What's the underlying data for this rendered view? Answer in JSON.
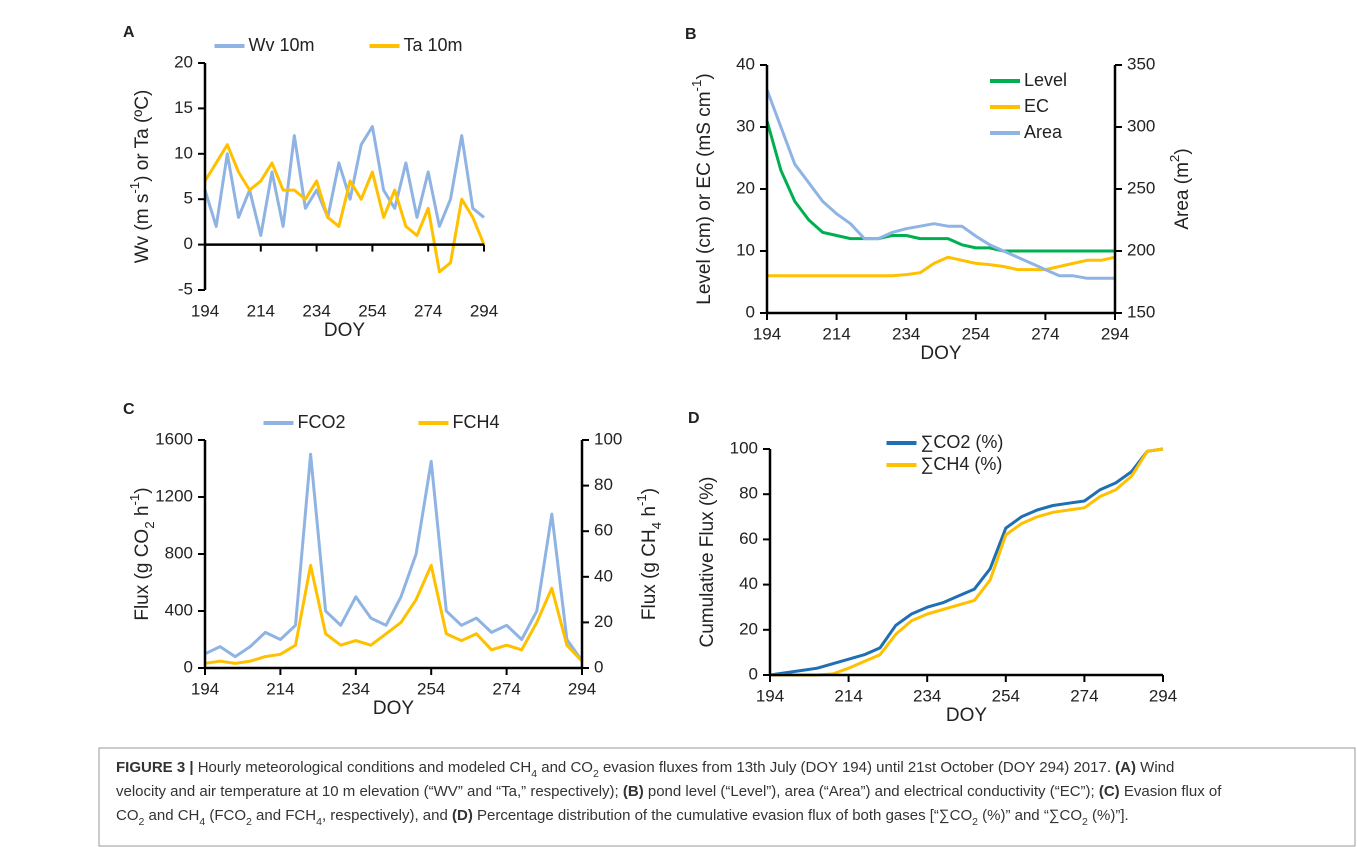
{
  "chart_data": [
    {
      "type": "line",
      "label": "A",
      "legend": "top",
      "xlabel": [
        {
          "text": "DOY"
        }
      ],
      "ylabel": [
        {
          "text": "Wv (m s"
        },
        {
          "text": "-1",
          "sup": true
        },
        {
          "text": ") or Ta (ºC)"
        }
      ],
      "xlim": [
        194,
        294
      ],
      "xticks": [
        194,
        214,
        234,
        254,
        274,
        294
      ],
      "ylim": [
        -5,
        20
      ],
      "yticks": [
        -5,
        0,
        5,
        10,
        15,
        20
      ],
      "x": [
        194,
        198,
        202,
        206,
        210,
        214,
        218,
        222,
        226,
        230,
        234,
        238,
        242,
        246,
        250,
        254,
        258,
        262,
        266,
        270,
        274,
        278,
        282,
        286,
        290,
        294
      ],
      "series": [
        {
          "name": "Wv 10m",
          "color": "#8fb4e3",
          "values": [
            6,
            2,
            10,
            3,
            6,
            1,
            8,
            2,
            12,
            4,
            6,
            3,
            9,
            5,
            11,
            13,
            6,
            4,
            9,
            3,
            8,
            2,
            5,
            12,
            4,
            3
          ]
        },
        {
          "name": "Ta 10m",
          "color": "#ffc000",
          "values": [
            7,
            9,
            11,
            8,
            6,
            7,
            9,
            6,
            6,
            5,
            7,
            3,
            2,
            7,
            5,
            8,
            3,
            6,
            2,
            1,
            4,
            -3,
            -2,
            5,
            3,
            0
          ]
        }
      ]
    },
    {
      "type": "line",
      "label": "B",
      "legend": "upper right",
      "xlabel": [
        {
          "text": "DOY"
        }
      ],
      "ylabel": [
        {
          "text": "Level (cm) or EC (mS cm"
        },
        {
          "text": "-1",
          "sup": true
        },
        {
          "text": ")"
        }
      ],
      "y2label": [
        {
          "text": "Area (m"
        },
        {
          "text": "2",
          "sup": true
        },
        {
          "text": ")"
        }
      ],
      "xlim": [
        194,
        294
      ],
      "xticks": [
        194,
        214,
        234,
        254,
        274,
        294
      ],
      "ylim": [
        0,
        40
      ],
      "yticks": [
        0,
        10,
        20,
        30,
        40
      ],
      "y2lim": [
        150,
        350
      ],
      "y2ticks": [
        150,
        200,
        250,
        300,
        350
      ],
      "x": [
        194,
        198,
        202,
        206,
        210,
        214,
        218,
        222,
        226,
        230,
        234,
        238,
        242,
        246,
        250,
        254,
        258,
        262,
        266,
        270,
        274,
        278,
        282,
        286,
        290,
        294
      ],
      "series": [
        {
          "name": "Level",
          "color": "#00b050",
          "values": [
            31,
            23,
            18,
            15,
            13,
            12.5,
            12,
            12,
            12,
            12.5,
            12.5,
            12,
            12,
            12,
            11,
            10.5,
            10.5,
            10,
            10,
            10,
            10,
            10,
            10,
            10,
            10,
            10
          ]
        },
        {
          "name": "EC",
          "color": "#ffc000",
          "values": [
            6,
            6,
            6,
            6,
            6,
            6,
            6,
            6,
            6,
            6,
            6.2,
            6.5,
            8,
            9,
            8.5,
            8,
            7.8,
            7.5,
            7,
            7,
            7,
            7.5,
            8,
            8.5,
            8.5,
            9
          ]
        },
        {
          "name": "Area",
          "color": "#8fb4e3",
          "axis": "y2",
          "values": [
            330,
            300,
            270,
            255,
            240,
            230,
            222,
            210,
            210,
            215,
            218,
            220,
            222,
            220,
            220,
            212,
            205,
            200,
            195,
            190,
            185,
            180,
            180,
            178,
            178,
            178
          ]
        }
      ]
    },
    {
      "type": "line",
      "label": "C",
      "legend": "top",
      "xlabel": [
        {
          "text": "DOY"
        }
      ],
      "ylabel": [
        {
          "text": "Flux (g CO"
        },
        {
          "text": "2",
          "sub": true
        },
        {
          "text": " h"
        },
        {
          "text": "-1",
          "sup": true
        },
        {
          "text": ")"
        }
      ],
      "y2label": [
        {
          "text": "Flux (g CH"
        },
        {
          "text": "4",
          "sub": true
        },
        {
          "text": " h"
        },
        {
          "text": "-1",
          "sup": true
        },
        {
          "text": ")"
        }
      ],
      "xlim": [
        194,
        294
      ],
      "xticks": [
        194,
        214,
        234,
        254,
        274,
        294
      ],
      "ylim": [
        0,
        1600
      ],
      "yticks": [
        0,
        400,
        800,
        1200,
        1600
      ],
      "y2lim": [
        0,
        100
      ],
      "y2ticks": [
        0,
        20,
        40,
        60,
        80,
        100
      ],
      "x": [
        194,
        198,
        202,
        206,
        210,
        214,
        218,
        222,
        226,
        230,
        234,
        238,
        242,
        246,
        250,
        254,
        258,
        262,
        266,
        270,
        274,
        278,
        282,
        286,
        290,
        294
      ],
      "series": [
        {
          "name": "FCO2",
          "color": "#8fb4e3",
          "values": [
            100,
            150,
            80,
            150,
            250,
            200,
            300,
            1500,
            400,
            300,
            500,
            350,
            300,
            500,
            800,
            1450,
            400,
            300,
            350,
            250,
            300,
            200,
            400,
            1080,
            200,
            50
          ]
        },
        {
          "name": "FCH4",
          "color": "#ffc000",
          "axis": "y2",
          "values": [
            2,
            3,
            2,
            3,
            5,
            6,
            10,
            45,
            15,
            10,
            12,
            10,
            15,
            20,
            30,
            45,
            15,
            12,
            15,
            8,
            10,
            8,
            20,
            35,
            10,
            3
          ]
        }
      ]
    },
    {
      "type": "line",
      "label": "D",
      "legend": "upper center",
      "xlabel": [
        {
          "text": "DOY"
        }
      ],
      "ylabel": [
        {
          "text": "Cumulative Flux (%)"
        }
      ],
      "xlim": [
        194,
        294
      ],
      "xticks": [
        194,
        214,
        234,
        254,
        274,
        294
      ],
      "ylim": [
        0,
        100
      ],
      "yticks": [
        0,
        20,
        40,
        60,
        80,
        100
      ],
      "x": [
        194,
        198,
        202,
        206,
        210,
        214,
        218,
        222,
        226,
        230,
        234,
        238,
        242,
        246,
        250,
        254,
        258,
        262,
        266,
        270,
        274,
        278,
        282,
        286,
        290,
        294
      ],
      "series": [
        {
          "name": "∑CO2 (%)",
          "color": "#1f6fb5",
          "values": [
            0,
            1,
            2,
            3,
            5,
            7,
            9,
            12,
            22,
            27,
            30,
            32,
            35,
            38,
            47,
            65,
            70,
            73,
            75,
            76,
            77,
            82,
            85,
            90,
            99,
            100
          ]
        },
        {
          "name": "∑CH4 (%)",
          "color": "#ffc000",
          "values": [
            0,
            0,
            0,
            0,
            0.5,
            3,
            6,
            9,
            18,
            24,
            27,
            29,
            31,
            33,
            42,
            62,
            67,
            70,
            72,
            73,
            74,
            79,
            82,
            88,
            99,
            100
          ]
        }
      ]
    }
  ],
  "caption": [
    [
      {
        "text": "FIGURE 3 |",
        "bold": true
      },
      {
        "text": " Hourly meteorological conditions and modeled CH"
      },
      {
        "text": "4",
        "sub": true
      },
      {
        "text": " and CO"
      },
      {
        "text": "2",
        "sub": true
      },
      {
        "text": " evasion fluxes from 13th July (DOY 194) until 21st October (DOY 294) 2017. "
      },
      {
        "text": "(A)",
        "bold": true
      },
      {
        "text": " Wind"
      }
    ],
    [
      {
        "text": "velocity and air temperature at 10 m elevation (“WV” and “Ta,” respectively); "
      },
      {
        "text": "(B)",
        "bold": true
      },
      {
        "text": " pond level (“Level”), area (“Area”) and electrical conductivity (“EC”); "
      },
      {
        "text": "(C)",
        "bold": true
      },
      {
        "text": " Evasion flux of"
      }
    ],
    [
      {
        "text": "CO"
      },
      {
        "text": "2",
        "sub": true
      },
      {
        "text": " and CH"
      },
      {
        "text": "4",
        "sub": true
      },
      {
        "text": " (FCO"
      },
      {
        "text": "2",
        "sub": true
      },
      {
        "text": " and FCH"
      },
      {
        "text": "4",
        "sub": true
      },
      {
        "text": ", respectively), and "
      },
      {
        "text": "(D)",
        "bold": true
      },
      {
        "text": " Percentage distribution of the cumulative evasion flux of both gases [“∑CO"
      },
      {
        "text": "2",
        "sub": true
      },
      {
        "text": " (%)” and “∑CO"
      },
      {
        "text": "2",
        "sub": true
      },
      {
        "text": " (%)”]."
      }
    ]
  ]
}
